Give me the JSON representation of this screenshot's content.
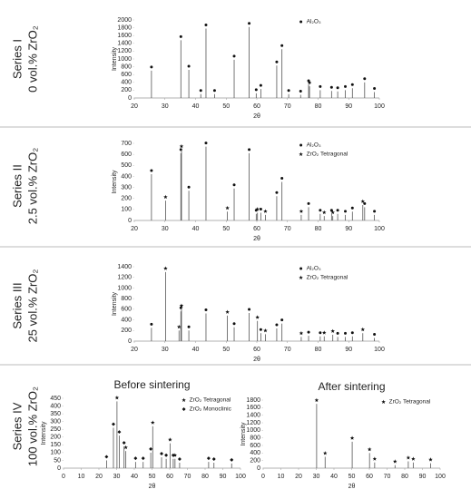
{
  "chart_data": [
    {
      "type": "bar",
      "series_label": "Series I",
      "composition": "0 vol.% ZrO₂",
      "ylabel": "Intensity",
      "xlabel": "2θ",
      "xlim": [
        20,
        100
      ],
      "xticks": [
        20,
        30,
        40,
        50,
        60,
        70,
        80,
        90,
        100
      ],
      "ylim": [
        0,
        2000
      ],
      "yticks": [
        0,
        200,
        400,
        600,
        800,
        1000,
        1200,
        1400,
        1600,
        1800,
        2000
      ],
      "legend": "upper right",
      "series": [
        {
          "name": "Al₂O₃",
          "marker": "circle",
          "color": "#555555",
          "x": [
            25.6,
            35.2,
            37.8,
            41.7,
            43.4,
            46.2,
            52.6,
            57.5,
            59.8,
            61.3,
            66.5,
            68.2,
            70.4,
            74.3,
            76.9,
            77.2,
            80.7,
            84.4,
            86.4,
            88.9,
            91.2,
            95.2,
            98.4
          ],
          "values": [
            700,
            1480,
            720,
            100,
            1780,
            100,
            980,
            1820,
            120,
            230,
            830,
            1250,
            100,
            80,
            350,
            300,
            200,
            180,
            170,
            200,
            250,
            400,
            150
          ]
        }
      ]
    },
    {
      "type": "bar",
      "series_label": "Series II",
      "composition": "2.5 vol.% ZrO₂",
      "ylabel": "Intensity",
      "xlabel": "2θ",
      "xlim": [
        20,
        100
      ],
      "xticks": [
        20,
        30,
        40,
        50,
        60,
        70,
        80,
        90,
        100
      ],
      "ylim": [
        0,
        700
      ],
      "yticks": [
        0,
        100,
        200,
        300,
        400,
        500,
        600,
        700
      ],
      "legend": "upper right",
      "series": [
        {
          "name": "Al₂O₃",
          "marker": "circle",
          "color": "#555555",
          "x": [
            25.6,
            35.2,
            37.8,
            43.4,
            52.6,
            57.5,
            59.8,
            61.3,
            66.5,
            68.2,
            76.9,
            80.7,
            84.4,
            86.4,
            88.9,
            91.2,
            95.2,
            98.4
          ],
          "values": [
            420,
            610,
            270,
            670,
            290,
            610,
            60,
            70,
            220,
            350,
            120,
            60,
            60,
            60,
            50,
            80,
            120,
            50
          ]
        },
        {
          "name": "ZrO₂ Tetragonal",
          "marker": "star",
          "color": "#555555",
          "x": [
            30.2,
            35.4,
            50.4,
            60.2,
            62.8,
            74.5,
            82.0,
            84.8,
            94.6
          ],
          "values": [
            180,
            640,
            80,
            70,
            50,
            50,
            40,
            40,
            140
          ]
        }
      ]
    },
    {
      "type": "bar",
      "series_label": "Series III",
      "composition": "25 vol.% ZrO₂",
      "ylabel": "Intensity",
      "xlabel": "2θ",
      "xlim": [
        20,
        100
      ],
      "xticks": [
        20,
        30,
        40,
        50,
        60,
        70,
        80,
        90,
        100
      ],
      "ylim": [
        0,
        1400
      ],
      "yticks": [
        0,
        200,
        400,
        600,
        800,
        1000,
        1200,
        1400
      ],
      "legend": "upper right",
      "series": [
        {
          "name": "Al₂O₃",
          "marker": "circle",
          "color": "#555555",
          "x": [
            25.6,
            35.2,
            37.8,
            43.4,
            52.6,
            57.5,
            61.3,
            66.5,
            68.2,
            76.9,
            80.7,
            86.4,
            88.9,
            91.2,
            98.4
          ],
          "values": [
            250,
            560,
            200,
            520,
            260,
            530,
            150,
            240,
            330,
            100,
            90,
            80,
            80,
            90,
            60
          ]
        },
        {
          "name": "ZrO₂ Tetragonal",
          "marker": "star",
          "color": "#555555",
          "x": [
            30.2,
            34.6,
            35.4,
            50.4,
            60.2,
            62.8,
            74.5,
            82.0,
            84.8,
            94.6
          ],
          "values": [
            1300,
            200,
            600,
            480,
            380,
            130,
            80,
            90,
            120,
            150
          ]
        }
      ]
    },
    {
      "type": "bar",
      "series_label": "Series IV",
      "composition": "100 vol.% ZrO₂",
      "title": "Before sintering",
      "ylabel": "Intensity",
      "xlabel": "2θ",
      "xlim": [
        0,
        100
      ],
      "xticks": [
        0,
        10,
        20,
        30,
        40,
        50,
        60,
        70,
        80,
        90,
        100
      ],
      "ylim": [
        0,
        450
      ],
      "yticks": [
        0,
        50,
        100,
        150,
        200,
        250,
        300,
        350,
        400,
        450
      ],
      "legend": "upper right",
      "series": [
        {
          "name": "ZrO₂ Tetragonal",
          "marker": "star",
          "color": "#555555",
          "x": [
            30.2,
            35.2,
            50.4,
            60.2,
            63.0
          ],
          "values": [
            430,
            110,
            270,
            160,
            60
          ]
        },
        {
          "name": "ZrO₂ Monoclinic",
          "marker": "square",
          "color": "#555555",
          "x": [
            24.3,
            28.2,
            31.5,
            34.2,
            40.7,
            45.0,
            49.3,
            55.4,
            58.0,
            62.0,
            65.6,
            82.0,
            85.0,
            95.0
          ],
          "values": [
            50,
            260,
            210,
            140,
            40,
            40,
            100,
            70,
            60,
            60,
            35,
            40,
            35,
            30
          ]
        }
      ]
    },
    {
      "type": "bar",
      "title": "After sintering",
      "ylabel": "Intensity",
      "xlabel": "2θ",
      "xlim": [
        0,
        100
      ],
      "xticks": [
        0,
        10,
        20,
        30,
        40,
        50,
        60,
        70,
        80,
        90,
        100
      ],
      "ylim": [
        0,
        1800
      ],
      "yticks": [
        0,
        200,
        400,
        600,
        800,
        1000,
        1200,
        1400,
        1600,
        1800
      ],
      "legend": "upper right",
      "series": [
        {
          "name": "ZrO₂ Tetragonal",
          "marker": "star",
          "color": "#555555",
          "x": [
            30.2,
            35.0,
            50.3,
            60.1,
            63.0,
            74.5,
            82.0,
            84.8,
            94.6
          ],
          "values": [
            1700,
            300,
            700,
            400,
            150,
            80,
            180,
            150,
            130
          ]
        }
      ]
    }
  ]
}
